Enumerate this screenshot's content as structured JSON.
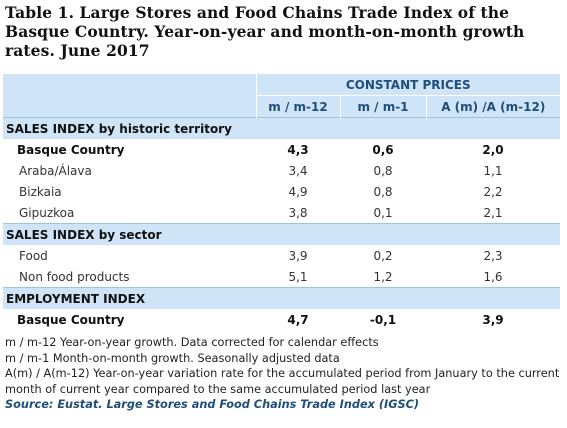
{
  "title": "Table 1. Large Stores and Food Chains Trade Index of the Basque Country. Year-on-year and month-on-month growth rates. June 2017",
  "header": {
    "group": "CONSTANT PRICES",
    "columns": [
      "m / m-12",
      "m / m-1",
      "A (m) /A (m-12)"
    ]
  },
  "sections": [
    {
      "label": "SALES INDEX by historic territory",
      "rows": [
        {
          "label": "Basque Country",
          "values": [
            "4,3",
            "0,6",
            "2,0"
          ],
          "bold": true
        },
        {
          "label": "Araba/Álava",
          "values": [
            "3,4",
            "0,8",
            "1,1"
          ],
          "bold": false
        },
        {
          "label": "Bizkaia",
          "values": [
            "4,9",
            "0,8",
            "2,2"
          ],
          "bold": false
        },
        {
          "label": "Gipuzkoa",
          "values": [
            "3,8",
            "0,1",
            "2,1"
          ],
          "bold": false
        }
      ]
    },
    {
      "label": "SALES INDEX by sector",
      "rows": [
        {
          "label": "Food",
          "values": [
            "3,9",
            "0,2",
            "2,3"
          ],
          "bold": false
        },
        {
          "label": "Non food products",
          "values": [
            "5,1",
            "1,2",
            "1,6"
          ],
          "bold": false
        }
      ]
    },
    {
      "label": "EMPLOYMENT INDEX",
      "rows": [
        {
          "label": "Basque Country",
          "values": [
            "4,7",
            "-0,1",
            "3,9"
          ],
          "bold": true
        }
      ]
    }
  ],
  "notes": [
    "m / m-12 Year-on-year growth. Data corrected for calendar effects",
    "m / m-1 Month-on-month growth. Seasonally adjusted data",
    "A(m) / A(m-12) Year-on-year variation rate for the accumulated period from January to the current month of current year compared to the same accumulated period last year"
  ],
  "source": "Source: Eustat. Large Stores and Food Chains Trade Index (IGSC)"
}
